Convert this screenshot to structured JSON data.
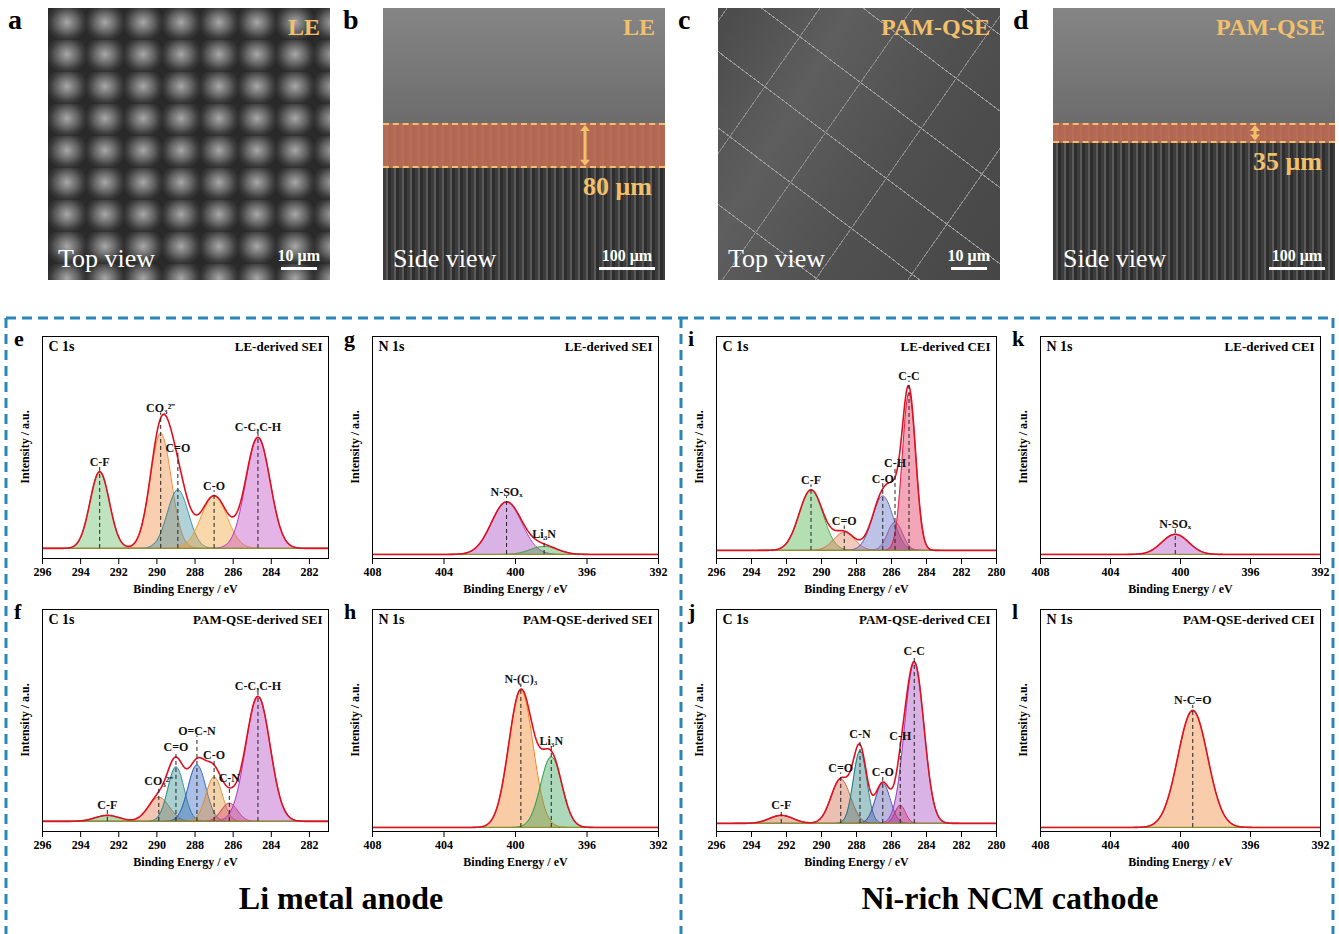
{
  "sem_images": [
    {
      "panel": "a",
      "sample": "LE",
      "view": "Top view",
      "scale_bar": {
        "value": 10,
        "label": "10 μm"
      }
    },
    {
      "panel": "b",
      "sample": "LE",
      "view": "Side view",
      "scale_bar": {
        "value": 100,
        "label": "100 μm"
      },
      "thickness": {
        "value": 80,
        "label": "80 μm"
      }
    },
    {
      "panel": "c",
      "sample": "PAM-QSE",
      "view": "Top view",
      "scale_bar": {
        "value": 10,
        "label": "10 μm"
      }
    },
    {
      "panel": "d",
      "sample": "PAM-QSE",
      "view": "Side view",
      "scale_bar": {
        "value": 100,
        "label": "100 μm"
      },
      "thickness": {
        "value": 35,
        "label": "35 μm"
      }
    }
  ],
  "chart_data": [
    {
      "panel": "e",
      "type": "xps",
      "title": "C 1s",
      "subtitle": "LE-derived SEI",
      "x_label": "Binding Energy / eV",
      "y_label": "Intensity / a.u.",
      "xlim": [
        296,
        281
      ],
      "xticks": [
        296,
        294,
        292,
        290,
        288,
        286,
        284,
        282
      ],
      "ylim": [
        0,
        110
      ],
      "tick_labels": "x",
      "color": "#e01020",
      "baseline": 5,
      "peaks": [
        {
          "name": "C-F",
          "center": 293.0,
          "height": 38,
          "fwhm": 1.2,
          "color": "#5cb85c"
        },
        {
          "name": "CO₃²⁻",
          "center": 289.8,
          "height": 57,
          "fwhm": 1.3,
          "color": "#f0883a"
        },
        {
          "name": "C=O",
          "center": 288.9,
          "height": 29,
          "fwhm": 1.3,
          "color": "#3a8fa0"
        },
        {
          "name": "C-O",
          "center": 287.0,
          "height": 26,
          "fwhm": 1.6,
          "color": "#f0a030"
        },
        {
          "name": "C-C,C-H",
          "center": 284.7,
          "height": 55,
          "fwhm": 1.5,
          "color": "#c040c0"
        }
      ]
    },
    {
      "panel": "f",
      "type": "xps",
      "title": "C 1s",
      "subtitle": "PAM-QSE-derived SEI",
      "x_label": "Binding Energy / eV",
      "y_label": "Intensity / a.u.",
      "xlim": [
        296,
        281
      ],
      "xticks": [
        296,
        294,
        292,
        290,
        288,
        286,
        284,
        282
      ],
      "ylim": [
        0,
        110
      ],
      "tick_labels": "x",
      "color": "#e01020",
      "baseline": 5,
      "peaks": [
        {
          "name": "C-F",
          "center": 292.6,
          "height": 3,
          "fwhm": 1.5,
          "color": "#40a040"
        },
        {
          "name": "CO₃²⁻",
          "center": 289.9,
          "height": 12,
          "fwhm": 1.3,
          "color": "#e07040"
        },
        {
          "name": "C=O",
          "center": 289.0,
          "height": 27,
          "fwhm": 1.0,
          "color": "#2a8a8a"
        },
        {
          "name": "O=C-N",
          "center": 287.9,
          "height": 28,
          "fwhm": 1.1,
          "color": "#3060c0"
        },
        {
          "name": "C-O",
          "center": 287.0,
          "height": 22,
          "fwhm": 1.0,
          "color": "#e09030"
        },
        {
          "name": "C-N",
          "center": 286.2,
          "height": 9,
          "fwhm": 1.0,
          "color": "#d04060"
        },
        {
          "name": "C-C,C-H",
          "center": 284.7,
          "height": 62,
          "fwhm": 1.5,
          "color": "#b040c0"
        }
      ]
    },
    {
      "panel": "g",
      "type": "xps",
      "title": "N 1s",
      "subtitle": "LE-derived SEI",
      "x_label": "Binding Energy / eV",
      "y_label": "Intensity / a.u.",
      "xlim": [
        408,
        392
      ],
      "xticks": [
        408,
        404,
        400,
        396,
        392
      ],
      "ylim": [
        0,
        110
      ],
      "tick_labels": "x",
      "color": "#e01020",
      "baseline": 2,
      "peaks": [
        {
          "name": "N-SOₓ",
          "center": 400.5,
          "height": 26,
          "fwhm": 2.0,
          "color": "#a040c0"
        },
        {
          "name": "Li₃N",
          "center": 398.4,
          "height": 4,
          "fwhm": 1.8,
          "color": "#40a040"
        }
      ]
    },
    {
      "panel": "h",
      "type": "xps",
      "title": "N 1s",
      "subtitle": "PAM-QSE-derived SEI",
      "x_label": "Binding Energy / eV",
      "y_label": "Intensity / a.u.",
      "xlim": [
        408,
        392
      ],
      "xticks": [
        408,
        404,
        400,
        396,
        392
      ],
      "ylim": [
        0,
        110
      ],
      "tick_labels": "x",
      "color": "#e01020",
      "baseline": 2,
      "peaks": [
        {
          "name": "N-(C)₃",
          "center": 399.7,
          "height": 68,
          "fwhm": 1.6,
          "color": "#f08020"
        },
        {
          "name": "Li₃N",
          "center": 398.0,
          "height": 35,
          "fwhm": 1.4,
          "color": "#30a050"
        }
      ]
    },
    {
      "panel": "i",
      "type": "xps",
      "title": "C 1s",
      "subtitle": "LE-derived CEI",
      "x_label": "Binding Energy / eV",
      "y_label": "Intensity / a.u.",
      "xlim": [
        296,
        280
      ],
      "xticks": [
        296,
        294,
        292,
        290,
        288,
        286,
        284,
        282,
        280
      ],
      "ylim": [
        0,
        110
      ],
      "tick_labels": "x",
      "color": "#e01020",
      "baseline": 4,
      "peaks": [
        {
          "name": "C-F",
          "center": 290.6,
          "height": 30,
          "fwhm": 1.6,
          "color": "#40b040"
        },
        {
          "name": "C=O",
          "center": 288.7,
          "height": 9,
          "fwhm": 1.4,
          "color": "#e07850"
        },
        {
          "name": "C-O",
          "center": 286.5,
          "height": 27,
          "fwhm": 1.4,
          "color": "#5a6ac0"
        },
        {
          "name": "C-H",
          "center": 285.8,
          "height": 14,
          "fwhm": 1.0,
          "color": "#8a6ab0"
        },
        {
          "name": "C-C",
          "center": 285.0,
          "height": 78,
          "fwhm": 0.9,
          "color": "#e0204a"
        }
      ]
    },
    {
      "panel": "j",
      "type": "xps",
      "title": "C 1s",
      "subtitle": "PAM-QSE-derived CEI",
      "x_label": "Binding Energy / eV",
      "y_label": "Intensity / a.u.",
      "xlim": [
        296,
        280
      ],
      "xticks": [
        296,
        294,
        292,
        290,
        288,
        286,
        284,
        282,
        280
      ],
      "ylim": [
        0,
        110
      ],
      "tick_labels": "x",
      "color": "#e01020",
      "baseline": 4,
      "peaks": [
        {
          "name": "C-F",
          "center": 292.3,
          "height": 4,
          "fwhm": 1.6,
          "color": "#c06030"
        },
        {
          "name": "C=O",
          "center": 288.9,
          "height": 22,
          "fwhm": 1.3,
          "color": "#d06040"
        },
        {
          "name": "C-N",
          "center": 287.8,
          "height": 36,
          "fwhm": 0.9,
          "color": "#207a80"
        },
        {
          "name": "C-O",
          "center": 286.5,
          "height": 20,
          "fwhm": 1.0,
          "color": "#5050b0"
        },
        {
          "name": "C-H",
          "center": 285.5,
          "height": 9,
          "fwhm": 0.7,
          "color": "#e03040"
        },
        {
          "name": "C-C",
          "center": 284.7,
          "height": 80,
          "fwhm": 1.3,
          "color": "#a040c0"
        }
      ]
    },
    {
      "panel": "k",
      "type": "xps",
      "title": "N 1s",
      "subtitle": "LE-derived CEI",
      "x_label": "Binding Energy / eV",
      "y_label": "Intensity / a.u.",
      "xlim": [
        408,
        392
      ],
      "xticks": [
        408,
        404,
        400,
        396,
        392
      ],
      "ylim": [
        0,
        110
      ],
      "tick_labels": "x",
      "color": "#e01020",
      "baseline": 2,
      "peaks": [
        {
          "name": "N-SOₓ",
          "center": 400.3,
          "height": 10,
          "fwhm": 1.8,
          "color": "#b040c0"
        }
      ]
    },
    {
      "panel": "l",
      "type": "xps",
      "title": "N 1s",
      "subtitle": "PAM-QSE-derived CEI",
      "x_label": "Binding Energy / eV",
      "y_label": "Intensity / a.u.",
      "xlim": [
        408,
        392
      ],
      "xticks": [
        408,
        404,
        400,
        396,
        392
      ],
      "ylim": [
        0,
        110
      ],
      "tick_labels": "x",
      "color": "#e01020",
      "baseline": 2,
      "peaks": [
        {
          "name": "N-C=O",
          "center": 399.3,
          "height": 58,
          "fwhm": 2.0,
          "color": "#f08030"
        }
      ]
    }
  ],
  "groups": [
    "Li metal anode",
    "Ni-rich NCM cathode"
  ]
}
